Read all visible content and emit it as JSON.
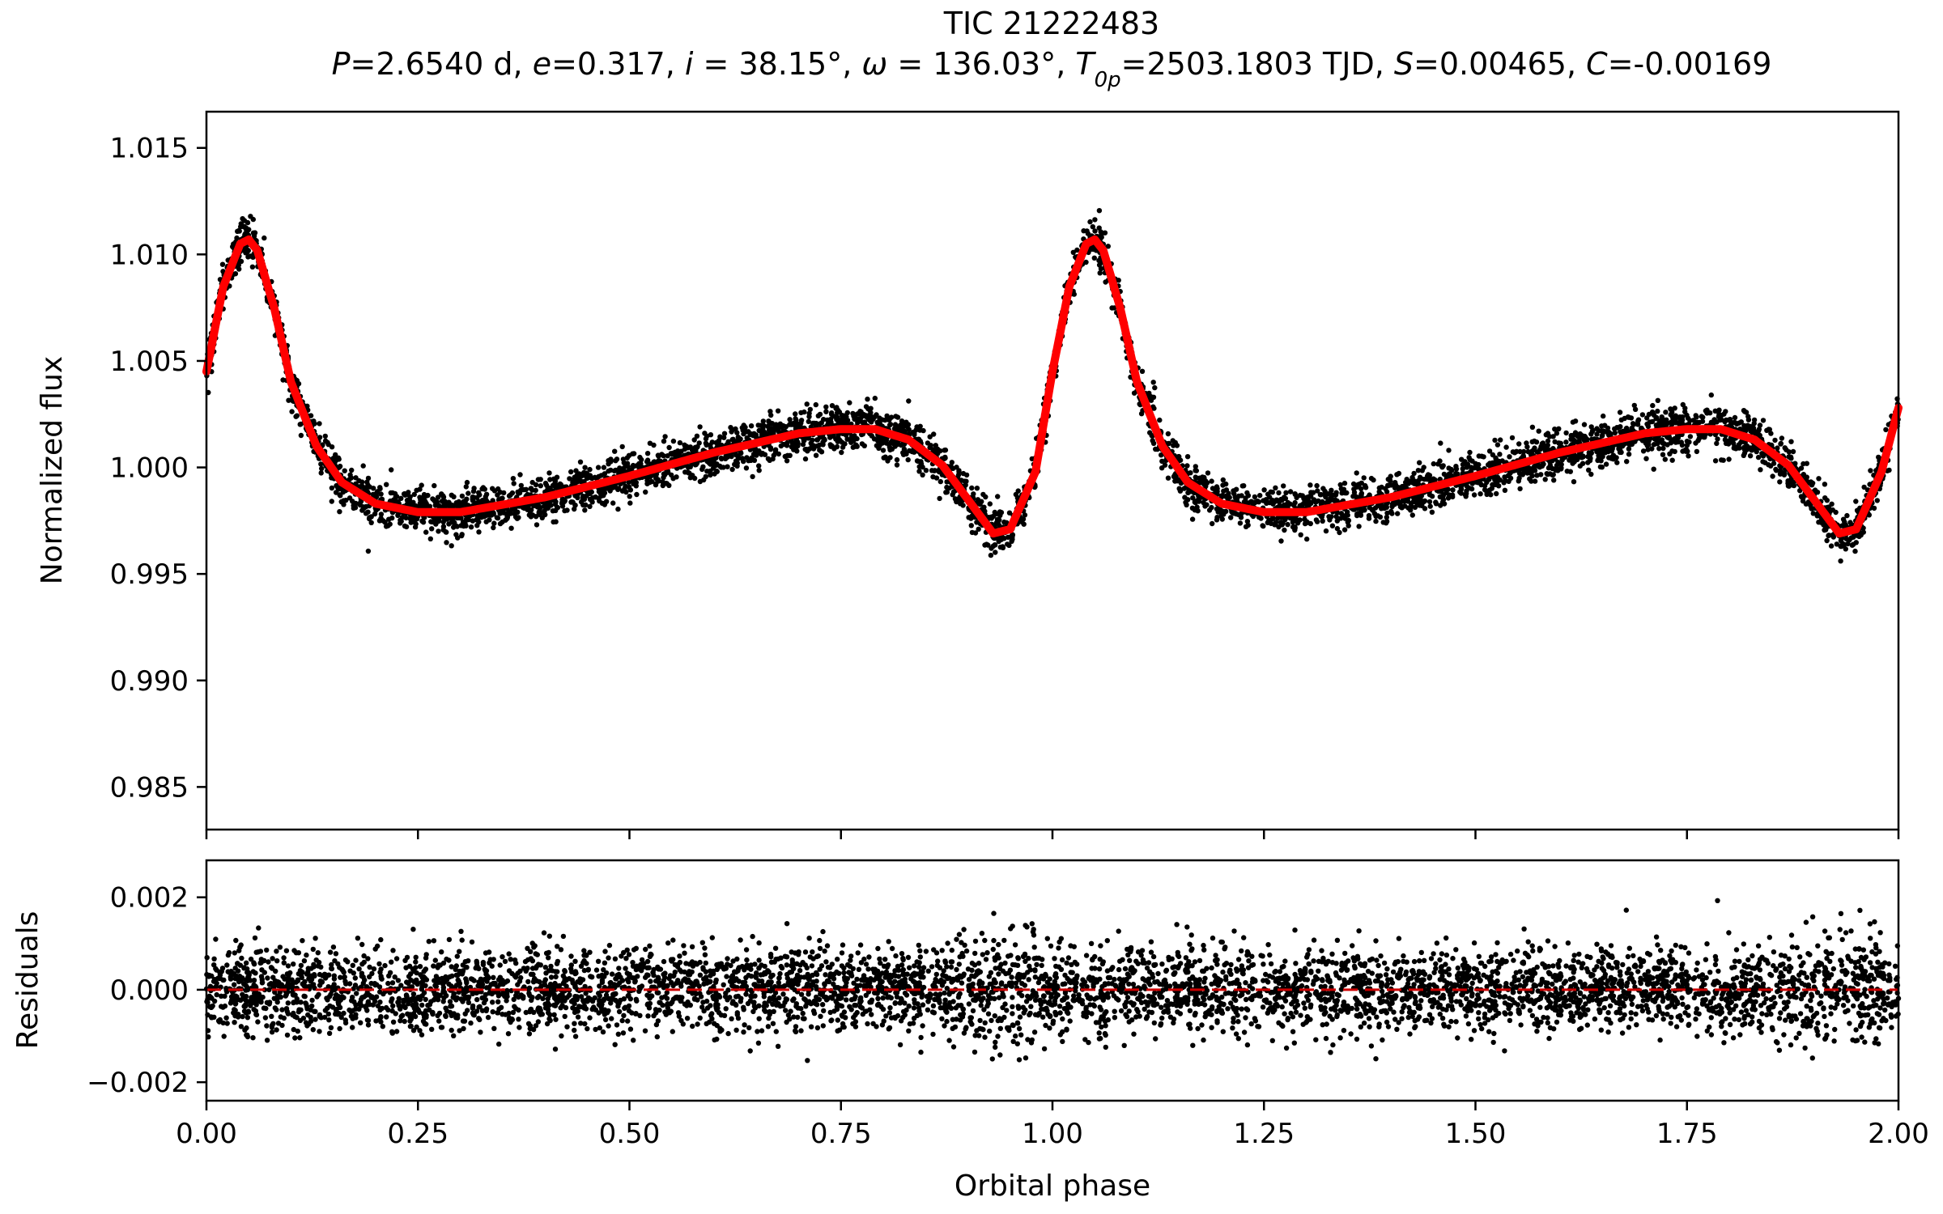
{
  "figure": {
    "title": "TIC 21222483",
    "subtitle_parts": [
      {
        "t": "P",
        "style": "italic"
      },
      {
        "t": "=2.6540 d, ",
        "style": "normal"
      },
      {
        "t": "e",
        "style": "italic"
      },
      {
        "t": "=0.317, ",
        "style": "normal"
      },
      {
        "t": "i",
        "style": "italic"
      },
      {
        "t": " = 38.15°, ",
        "style": "normal"
      },
      {
        "t": "ω",
        "style": "italic"
      },
      {
        "t": " = 136.03°, ",
        "style": "normal"
      },
      {
        "t": "T",
        "style": "italic"
      },
      {
        "t": "0p",
        "style": "sub"
      },
      {
        "t": "=2503.1803 TJD, ",
        "style": "normal"
      },
      {
        "t": "S",
        "style": "italic"
      },
      {
        "t": "=0.00465, ",
        "style": "normal"
      },
      {
        "t": "C",
        "style": "italic"
      },
      {
        "t": "=-0.00169",
        "style": "normal"
      }
    ]
  },
  "chart_data": [
    {
      "type": "scatter",
      "panel": "top",
      "title": "TIC 21222483",
      "subtitle": "P=2.6540 d, e=0.317, i = 38.15°, ω = 136.03°, T0p=2503.1803 TJD, S=0.00465, C=-0.00169",
      "xlabel": "",
      "ylabel": "Normalized flux",
      "xlim": [
        0.0,
        2.0
      ],
      "ylim": [
        0.983,
        1.0167
      ],
      "yticks": [
        0.985,
        0.99,
        0.995,
        1.0,
        1.005,
        1.01,
        1.015
      ],
      "ytick_labels": [
        "0.985",
        "0.990",
        "0.995",
        "1.000",
        "1.005",
        "1.010",
        "1.015"
      ],
      "xticks": [
        0.0,
        0.25,
        0.5,
        0.75,
        1.0,
        1.25,
        1.5,
        1.75,
        2.0
      ],
      "grid": false,
      "series": [
        {
          "kind": "points",
          "color": "#000000",
          "scatter_sigma": 0.0006,
          "x": [
            0.0,
            0.02,
            0.04,
            0.05,
            0.06,
            0.08,
            0.1,
            0.13,
            0.16,
            0.2,
            0.25,
            0.3,
            0.4,
            0.5,
            0.6,
            0.7,
            0.75,
            0.79,
            0.83,
            0.87,
            0.9,
            0.93,
            0.95,
            0.98,
            1.0,
            1.02,
            1.04,
            1.05,
            1.06,
            1.08,
            1.1,
            1.13,
            1.16,
            1.2,
            1.25,
            1.3,
            1.4,
            1.5,
            1.6,
            1.7,
            1.75,
            1.79,
            1.83,
            1.87,
            1.9,
            1.93,
            1.95,
            1.98,
            2.0
          ],
          "y": [
            1.0045,
            1.0085,
            1.0105,
            1.0107,
            1.0102,
            1.0075,
            1.004,
            1.001,
            0.9993,
            0.9983,
            0.9979,
            0.9979,
            0.9986,
            0.9996,
            1.0007,
            1.0016,
            1.0018,
            1.0018,
            1.0013,
            1.0001,
            0.9985,
            0.9969,
            0.9971,
            0.9998,
            1.0045,
            1.0085,
            1.0105,
            1.0107,
            1.0102,
            1.0075,
            1.004,
            1.001,
            0.9993,
            0.9983,
            0.9979,
            0.9979,
            0.9986,
            0.9996,
            1.0007,
            1.0016,
            1.0018,
            1.0018,
            1.0013,
            1.0001,
            0.9985,
            0.9969,
            0.9971,
            0.9998,
            1.0028
          ]
        },
        {
          "kind": "line",
          "color": "#ff0000",
          "x": [
            0.0,
            0.02,
            0.04,
            0.05,
            0.06,
            0.08,
            0.1,
            0.13,
            0.16,
            0.2,
            0.25,
            0.3,
            0.4,
            0.5,
            0.6,
            0.7,
            0.75,
            0.79,
            0.83,
            0.87,
            0.9,
            0.93,
            0.95,
            0.98,
            1.0,
            1.02,
            1.04,
            1.05,
            1.06,
            1.08,
            1.1,
            1.13,
            1.16,
            1.2,
            1.25,
            1.3,
            1.4,
            1.5,
            1.6,
            1.7,
            1.75,
            1.79,
            1.83,
            1.87,
            1.9,
            1.93,
            1.95,
            1.98,
            2.0
          ],
          "y": [
            1.0045,
            1.0085,
            1.0105,
            1.0107,
            1.0102,
            1.0075,
            1.004,
            1.001,
            0.9993,
            0.9983,
            0.9979,
            0.9979,
            0.9986,
            0.9996,
            1.0007,
            1.0016,
            1.0018,
            1.0018,
            1.0013,
            1.0001,
            0.9985,
            0.9969,
            0.9971,
            0.9998,
            1.0045,
            1.0085,
            1.0105,
            1.0107,
            1.0102,
            1.0075,
            1.004,
            1.001,
            0.9993,
            0.9983,
            0.9979,
            0.9979,
            0.9986,
            0.9996,
            1.0007,
            1.0016,
            1.0018,
            1.0018,
            1.0013,
            1.0001,
            0.9985,
            0.9969,
            0.9971,
            0.9998,
            1.0028
          ]
        }
      ]
    },
    {
      "type": "scatter",
      "panel": "bottom",
      "xlabel": "Orbital phase",
      "ylabel": "Residuals",
      "xlim": [
        0.0,
        2.0
      ],
      "ylim": [
        -0.0024,
        0.0028
      ],
      "yticks": [
        -0.002,
        0.0,
        0.002
      ],
      "ytick_labels": [
        "−0.002",
        "0.000",
        "0.002"
      ],
      "xticks": [
        0.0,
        0.25,
        0.5,
        0.75,
        1.0,
        1.25,
        1.5,
        1.75,
        2.0
      ],
      "xtick_labels": [
        "0.00",
        "0.25",
        "0.50",
        "0.75",
        "1.00",
        "1.25",
        "1.50",
        "1.75",
        "2.00"
      ],
      "grid": false,
      "series": [
        {
          "kind": "points",
          "color": "#000000",
          "y_center": 0.0,
          "scatter_sigma": 0.0006,
          "range": [
            -0.0021,
            0.0025
          ]
        },
        {
          "kind": "hline",
          "color": "#cc0000",
          "style": "dashed",
          "y": 0.0
        }
      ]
    }
  ]
}
